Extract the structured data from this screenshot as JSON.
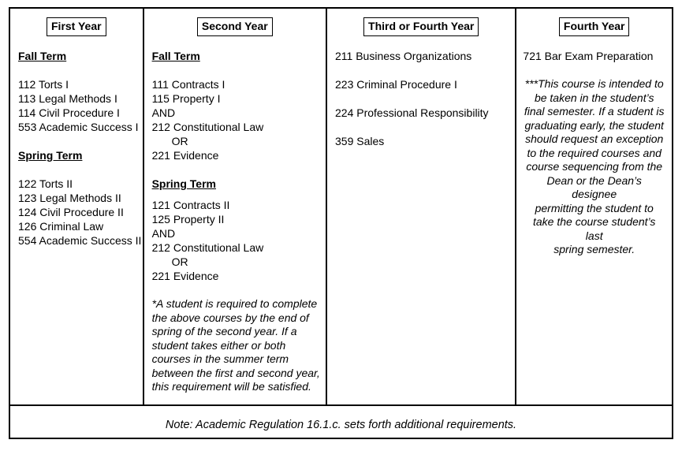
{
  "table": {
    "columns": [
      {
        "header": "First Year",
        "lines": [
          {
            "text": "Fall Term",
            "style": "term"
          },
          {
            "text": "",
            "style": "blank"
          },
          {
            "text": "112 Torts I",
            "style": "course"
          },
          {
            "text": "113 Legal Methods I",
            "style": "course"
          },
          {
            "text": "114 Civil Procedure I",
            "style": "course"
          },
          {
            "text": "553 Academic Success I",
            "style": "course"
          },
          {
            "text": "",
            "style": "blank"
          },
          {
            "text": "Spring Term",
            "style": "term"
          },
          {
            "text": "",
            "style": "blank"
          },
          {
            "text": "122 Torts II",
            "style": "course"
          },
          {
            "text": "123 Legal Methods II",
            "style": "course"
          },
          {
            "text": "124 Civil Procedure II",
            "style": "course"
          },
          {
            "text": "126 Criminal Law",
            "style": "course"
          },
          {
            "text": "554 Academic Success II",
            "style": "course"
          }
        ]
      },
      {
        "header": "Second Year",
        "lines": [
          {
            "text": "Fall Term",
            "style": "term"
          },
          {
            "text": "",
            "style": "blank"
          },
          {
            "text": "111 Contracts I",
            "style": "course"
          },
          {
            "text": "115 Property I",
            "style": "course"
          },
          {
            "text": "AND",
            "style": "course"
          },
          {
            "text": "212 Constitutional Law",
            "style": "course"
          },
          {
            "text": "OR",
            "style": "or"
          },
          {
            "text": "221 Evidence",
            "style": "course"
          },
          {
            "text": "",
            "style": "blank"
          },
          {
            "text": "Spring Term",
            "style": "term"
          },
          {
            "text": "",
            "style": "gap"
          },
          {
            "text": "121 Contracts II",
            "style": "course"
          },
          {
            "text": "125 Property II",
            "style": "course"
          },
          {
            "text": "AND",
            "style": "course"
          },
          {
            "text": "212 Constitutional Law",
            "style": "course"
          },
          {
            "text": "OR",
            "style": "or"
          },
          {
            "text": "221 Evidence",
            "style": "course"
          },
          {
            "text": "",
            "style": "blank"
          },
          {
            "text": "*A student is required to complete\nthe above courses by the end of\nspring of the second year. If a\nstudent takes either or both\ncourses in the summer term\nbetween the first and second year,\nthis requirement will be satisfied.",
            "style": "note"
          }
        ]
      },
      {
        "header": "Third or Fourth Year",
        "lines": [
          {
            "text": "211 Business Organizations",
            "style": "course"
          },
          {
            "text": "",
            "style": "blank"
          },
          {
            "text": "223 Criminal Procedure I",
            "style": "course"
          },
          {
            "text": "",
            "style": "blank"
          },
          {
            "text": "224 Professional Responsibility",
            "style": "course"
          },
          {
            "text": "",
            "style": "blank"
          },
          {
            "text": "359 Sales",
            "style": "course"
          }
        ]
      },
      {
        "header": "Fourth Year",
        "lines": [
          {
            "text": "721 Bar Exam Preparation",
            "style": "course"
          },
          {
            "text": "",
            "style": "blank"
          },
          {
            "text": "***This course is intended to\nbe taken in the student’s\nfinal semester.  If a student is\ngraduating early, the student\nshould request an exception\nto the required courses and\ncourse sequencing from the\nDean or the Dean’s designee\npermitting the student to\ntake the course student’s last\nspring semester.",
            "style": "note-center"
          }
        ]
      }
    ],
    "footer_note": "Note: Academic Regulation 16.1.c. sets forth additional requirements."
  }
}
